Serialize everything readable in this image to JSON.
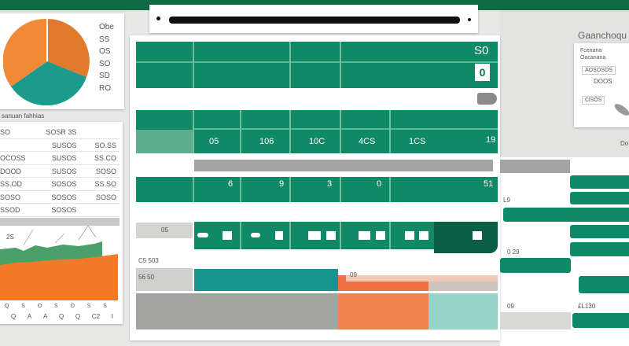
{
  "topbar": {
    "color": "#0e6b43"
  },
  "search": {
    "placeholder": ""
  },
  "pie": {
    "legend": [
      "Obe",
      "SS",
      "OS",
      "SO",
      "SD",
      "RO"
    ],
    "colors": [
      "#f08a36",
      "#e07a2c",
      "#1c9a8c"
    ]
  },
  "table": {
    "caption": "sanuan fahhias",
    "header": [
      "SO",
      "SOSR 3S",
      ""
    ],
    "rows": [
      [
        "",
        "SUSOS",
        "SO.SS"
      ],
      [
        "OCOSS",
        "SUSOS",
        "SS.CO"
      ],
      [
        "DOOD",
        "SUSOS",
        "SOSO"
      ],
      [
        "SS.OD",
        "SOSOS",
        "SS.SO"
      ],
      [
        "SOSO",
        "SOSOS",
        "SOSO"
      ],
      [
        "SSOD",
        "SOSOS",
        ""
      ]
    ]
  },
  "area_chart": {
    "label": "2S",
    "x_ticks_1": [
      "Q",
      "S",
      "O",
      "S",
      "O",
      "S",
      "S"
    ],
    "x_ticks_2": [
      "Q",
      "A",
      "A",
      "Q",
      "Q",
      "C2",
      "I"
    ]
  },
  "grid": {
    "header_value": "S0",
    "header_box": "0",
    "row_values": [
      "05",
      "106",
      "10C",
      "4CS",
      "1CS",
      "19"
    ],
    "row2_values": [
      "6",
      "9",
      "3",
      "0",
      "51"
    ],
    "side_labels": [
      "05",
      "C5 503",
      "56 50"
    ],
    "band_label": "09"
  },
  "right": {
    "title": "Gaanchoqu",
    "panel_label1": "Fcenana",
    "panel_label2": "Oacanana",
    "field1": "AOSOSOS",
    "field_value": "DOOS",
    "field2": "ClSOS",
    "labels": [
      "L9",
      "0 29",
      "09",
      "£L130"
    ],
    "edge": "Do"
  }
}
